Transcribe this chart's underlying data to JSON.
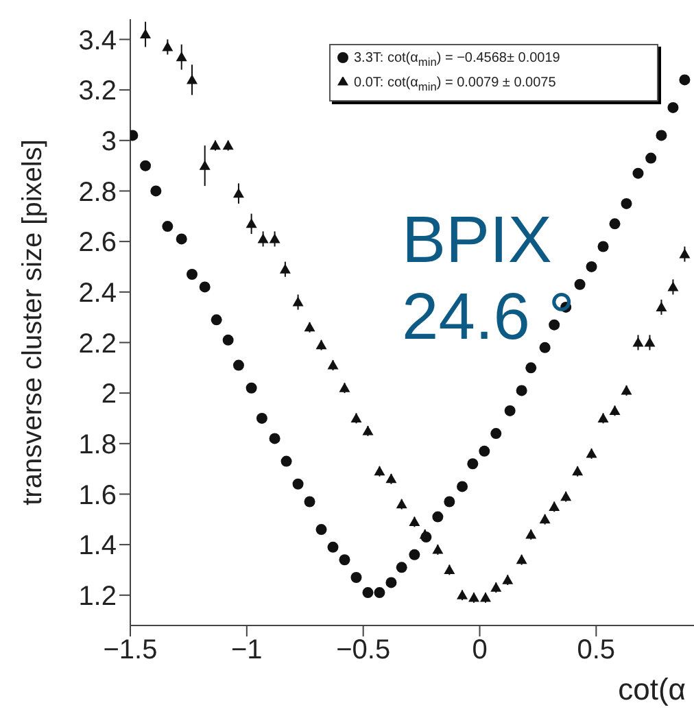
{
  "chart_data": {
    "type": "scatter",
    "xlabel": "cot(α",
    "ylabel": "transverse cluster size [pixels]",
    "xlim": [
      -1.5,
      0.92
    ],
    "xticks": [
      -1.5,
      -1,
      -0.5,
      0,
      0.5
    ],
    "ylim": [
      1.08,
      3.48
    ],
    "yticks": [
      1.2,
      1.4,
      1.6,
      1.8,
      2,
      2.2,
      2.4,
      2.6,
      2.8,
      3,
      3.2,
      3.4
    ],
    "legend": "top right",
    "annotations": [
      "BPIX",
      "24.6 °"
    ],
    "series": [
      {
        "name": "3.3T: cot(α$_{min}$) = −0.4568± 0.0019",
        "color": "#111111",
        "marker": "circle",
        "x": [
          -1.49,
          -1.435,
          -1.39,
          -1.34,
          -1.28,
          -1.235,
          -1.18,
          -1.13,
          -1.08,
          -1.035,
          -0.98,
          -0.935,
          -0.88,
          -0.83,
          -0.78,
          -0.73,
          -0.68,
          -0.63,
          -0.58,
          -0.53,
          -0.48,
          -0.43,
          -0.38,
          -0.335,
          -0.28,
          -0.23,
          -0.18,
          -0.13,
          -0.075,
          -0.03,
          0.02,
          0.07,
          0.13,
          0.18,
          0.22,
          0.28,
          0.32,
          0.37,
          0.43,
          0.48,
          0.53,
          0.58,
          0.63,
          0.68,
          0.735,
          0.78,
          0.83,
          0.88
        ],
        "values": [
          3.02,
          2.9,
          2.8,
          2.66,
          2.61,
          2.47,
          2.42,
          2.29,
          2.21,
          2.11,
          2.02,
          1.9,
          1.82,
          1.73,
          1.64,
          1.57,
          1.46,
          1.39,
          1.34,
          1.27,
          1.21,
          1.21,
          1.25,
          1.31,
          1.36,
          1.43,
          1.51,
          1.57,
          1.63,
          1.72,
          1.77,
          1.84,
          1.93,
          2.01,
          2.1,
          2.18,
          2.27,
          2.34,
          2.43,
          2.5,
          2.58,
          2.67,
          2.75,
          2.87,
          2.93,
          3.02,
          3.13,
          3.24
        ]
      },
      {
        "name": "0.0T: cot(α$_{min}$) = 0.0079 ± 0.0075",
        "color": "#111111",
        "marker": "triangle",
        "x": [
          -1.435,
          -1.34,
          -1.28,
          -1.235,
          -1.18,
          -1.135,
          -1.08,
          -1.035,
          -0.98,
          -0.93,
          -0.88,
          -0.835,
          -0.78,
          -0.73,
          -0.68,
          -0.63,
          -0.58,
          -0.53,
          -0.48,
          -0.43,
          -0.38,
          -0.335,
          -0.28,
          -0.235,
          -0.18,
          -0.13,
          -0.075,
          -0.025,
          0.025,
          0.07,
          0.12,
          0.18,
          0.22,
          0.28,
          0.32,
          0.37,
          0.42,
          0.48,
          0.53,
          0.58,
          0.63,
          0.68,
          0.73,
          0.78,
          0.83,
          0.88
        ],
        "values": [
          3.42,
          3.37,
          3.33,
          3.24,
          2.9,
          2.98,
          2.98,
          2.79,
          2.67,
          2.61,
          2.61,
          2.49,
          2.36,
          2.26,
          2.19,
          2.11,
          2.02,
          1.9,
          1.85,
          1.69,
          1.66,
          1.56,
          1.49,
          1.44,
          1.38,
          1.3,
          1.2,
          1.19,
          1.19,
          1.23,
          1.26,
          1.34,
          1.44,
          1.5,
          1.55,
          1.59,
          1.69,
          1.76,
          1.9,
          1.93,
          2.01,
          2.2,
          2.2,
          2.34,
          2.42,
          2.55
        ],
        "errors": [
          0.05,
          0.03,
          0.05,
          0.06,
          0.08,
          0.02,
          0.02,
          0.04,
          0.04,
          0.03,
          0.03,
          0.03,
          0.03,
          0.02,
          0.02,
          0.02,
          0.02,
          0.02,
          0.02,
          0.02,
          0.02,
          0.02,
          0.02,
          0.02,
          0.02,
          0.02,
          0.02,
          0.02,
          0.02,
          0.02,
          0.02,
          0.02,
          0.02,
          0.02,
          0.02,
          0.02,
          0.02,
          0.02,
          0.02,
          0.02,
          0.02,
          0.03,
          0.03,
          0.03,
          0.03,
          0.03
        ]
      }
    ]
  }
}
